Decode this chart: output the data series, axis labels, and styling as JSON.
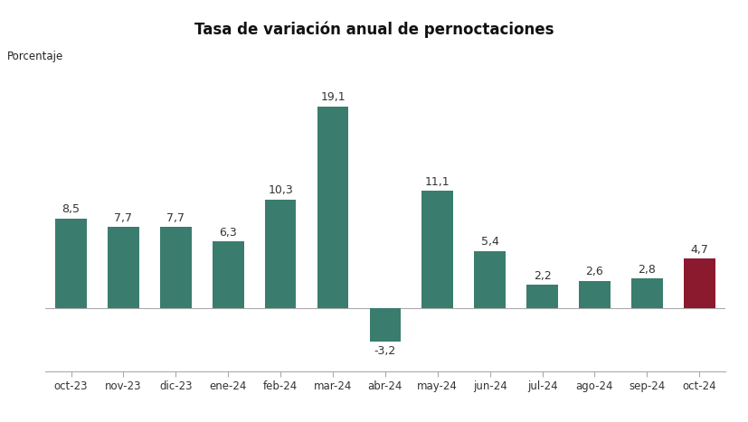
{
  "categories": [
    "oct-23",
    "nov-23",
    "dic-23",
    "ene-24",
    "feb-24",
    "mar-24",
    "abr-24",
    "may-24",
    "jun-24",
    "jul-24",
    "ago-24",
    "sep-24",
    "oct-24"
  ],
  "values": [
    8.5,
    7.7,
    7.7,
    6.3,
    10.3,
    19.1,
    -3.2,
    11.1,
    5.4,
    2.2,
    2.6,
    2.8,
    4.7
  ],
  "bar_colors": [
    "#3a7d6e",
    "#3a7d6e",
    "#3a7d6e",
    "#3a7d6e",
    "#3a7d6e",
    "#3a7d6e",
    "#3a7d6e",
    "#3a7d6e",
    "#3a7d6e",
    "#3a7d6e",
    "#3a7d6e",
    "#3a7d6e",
    "#8b1a2e"
  ],
  "title": "Tasa de variación anual de pernoctaciones",
  "ylabel": "Porcentaje",
  "title_fontsize": 12,
  "label_fontsize": 9,
  "tick_fontsize": 8.5,
  "background_color": "#ffffff",
  "ylim_min": -6,
  "ylim_max": 22
}
